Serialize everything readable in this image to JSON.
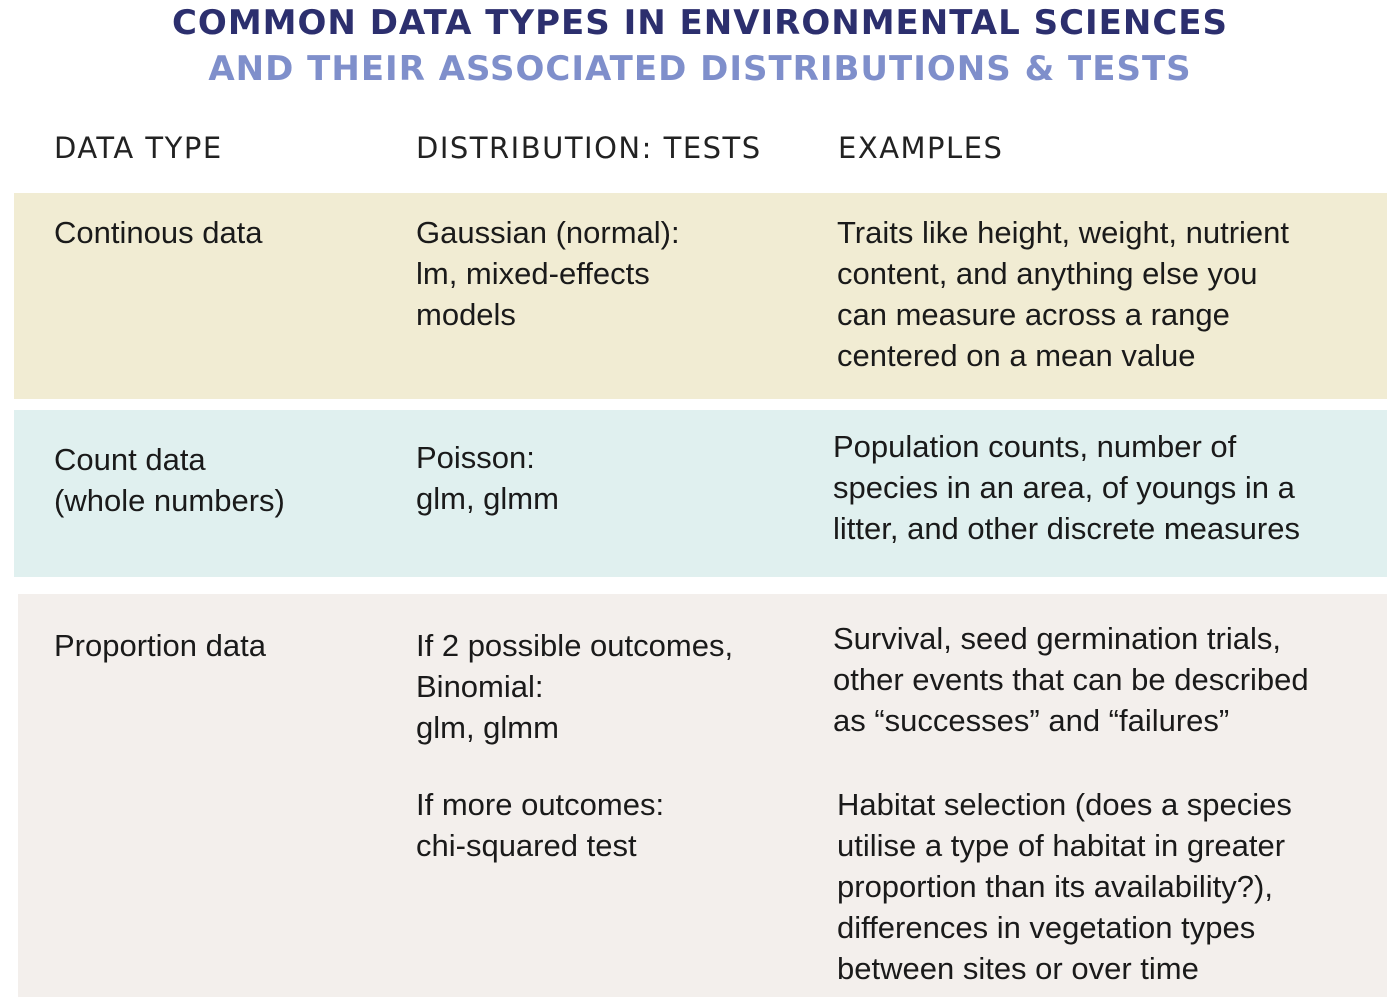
{
  "title": {
    "line1": "COMMON DATA TYPES IN ENVIRONMENTAL SCIENCES",
    "line2": "AND THEIR ASSOCIATED DISTRIBUTIONS & TESTS"
  },
  "headers": {
    "data_type": "DATA TYPE",
    "distribution_tests": "DISTRIBUTION: TESTS",
    "examples": "EXAMPLES"
  },
  "rows": {
    "continuous": {
      "data_type": "Continous data",
      "distribution": "Gaussian (normal):\nlm, mixed-effects\nmodels",
      "examples": "Traits like height, weight, nutrient\ncontent, and anything else you\ncan measure across a range\ncentered on a mean value"
    },
    "count": {
      "data_type": "Count data\n(whole numbers)",
      "distribution": "Poisson:\nglm, glmm",
      "examples": "Population counts, number of\nspecies in an area, of youngs in a\nlitter, and other discrete measures"
    },
    "proportion": {
      "data_type": "Proportion data",
      "distribution_binomial": "If 2 possible outcomes,\nBinomial:\nglm, glmm",
      "examples_binomial": "Survival, seed germination trials,\nother events that can be described\nas “successes” and “failures”",
      "distribution_multi": "If more outcomes:\nchi-squared test",
      "examples_multi": "Habitat selection (does a species\nutilise a type of habitat in greater\nproportion than its availability?),\ndifferences in vegetation types\nbetween sites or over time"
    }
  },
  "colors": {
    "title_primary": "#2c2f6e",
    "title_secondary": "#7f8fcb",
    "band_continuous": "#f1ecd3",
    "band_count": "#e0f0ef",
    "band_proportion": "#f3efec"
  }
}
